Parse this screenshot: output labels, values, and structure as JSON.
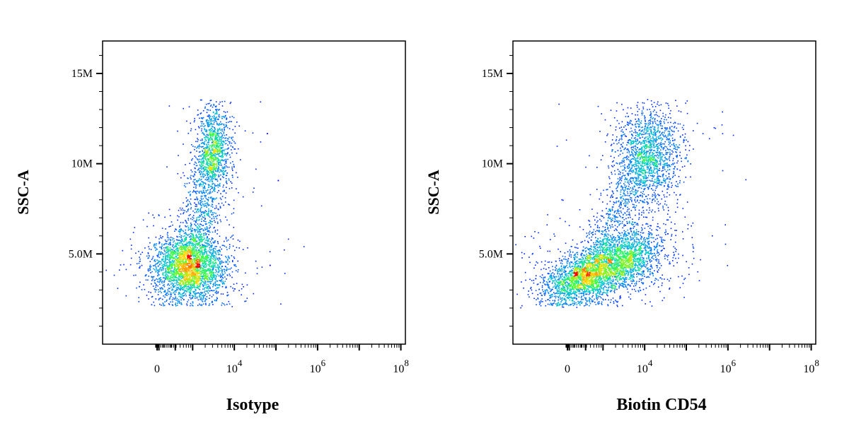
{
  "chart_data": [
    {
      "type": "scatter",
      "subtype": "flow-cytometry-density-dot-plot",
      "xlabel": "Isotype",
      "ylabel": "SSC-A",
      "x_scale": "biexponential",
      "x_ticks": [
        {
          "value": 0,
          "base": "0",
          "exp": ""
        },
        {
          "value": 10000,
          "base": "10",
          "exp": "4"
        },
        {
          "value": 1000000,
          "base": "10",
          "exp": "6"
        },
        {
          "value": 100000000,
          "base": "10",
          "exp": "8"
        }
      ],
      "y_ticks": [
        {
          "value": 5000000,
          "label": "5.0M"
        },
        {
          "value": 10000000,
          "label": "10M"
        },
        {
          "value": 15000000,
          "label": "15M"
        }
      ],
      "ylim": [
        0,
        16800000
      ],
      "grid": false,
      "populations": [
        {
          "name": "",
          "x_center": 800,
          "y_center": 4300000,
          "spread": "dense",
          "peak": "red"
        },
        {
          "name": "",
          "x_center": 3000,
          "y_center": 10800000,
          "spread": "narrow",
          "peak": "green"
        }
      ],
      "outliers": [
        {
          "x": 60000,
          "y": 11700000
        },
        {
          "x": 70000,
          "y": 4400000
        },
        {
          "x": 110000,
          "y": 9100000
        }
      ]
    },
    {
      "type": "scatter",
      "subtype": "flow-cytometry-density-dot-plot",
      "xlabel": "Biotin CD54",
      "ylabel": "SSC-A",
      "x_scale": "biexponential",
      "x_ticks": [
        {
          "value": 0,
          "base": "0",
          "exp": ""
        },
        {
          "value": 10000,
          "base": "10",
          "exp": "4"
        },
        {
          "value": 1000000,
          "base": "10",
          "exp": "6"
        },
        {
          "value": 100000000,
          "base": "10",
          "exp": "8"
        }
      ],
      "y_ticks": [
        {
          "value": 5000000,
          "label": "5.0M"
        },
        {
          "value": 10000000,
          "label": "10M"
        },
        {
          "value": 15000000,
          "label": "15M"
        }
      ],
      "ylim": [
        0,
        16800000
      ],
      "grid": false,
      "populations": [
        {
          "name": "",
          "x_center": 300,
          "y_center": 3600000,
          "spread": "dense",
          "peak": "red"
        },
        {
          "name": "",
          "x_center": 2800,
          "y_center": 4700000,
          "spread": "dense",
          "peak": "red"
        },
        {
          "name": "",
          "x_center": 12000,
          "y_center": 10600000,
          "spread": "broad",
          "peak": "green"
        }
      ],
      "outliers": []
    }
  ],
  "colors": {
    "density_low": "#0000ff",
    "density_mid": "#00c8c8",
    "density_mid2": "#40ff40",
    "density_high": "#ffd000",
    "density_peak": "#ff0000",
    "axis": "#000000"
  }
}
